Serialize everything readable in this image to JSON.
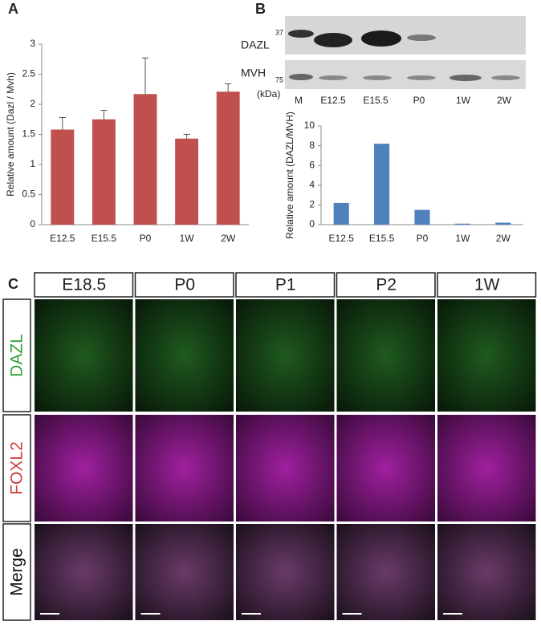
{
  "panel_labels": [
    "A",
    "B",
    "C"
  ],
  "chart_data": [
    {
      "type": "bar",
      "ylabel": "Relative amount (Dazl / Mvh)",
      "categories": [
        "E12.5",
        "E15.5",
        "P0",
        "1W",
        "2W"
      ],
      "values": [
        1.58,
        1.75,
        2.17,
        1.43,
        2.21
      ],
      "errors": [
        0.2,
        0.15,
        0.6,
        0.07,
        0.13
      ],
      "color": "#c0504d",
      "ylim": [
        0,
        3
      ],
      "yticks": [
        0,
        0.5,
        1,
        1.5,
        2,
        2.5,
        3
      ]
    },
    {
      "type": "bar",
      "ylabel": "Relative amount (DAZL/MVH)",
      "categories": [
        "E12.5",
        "E15.5",
        "P0",
        "1W",
        "2W"
      ],
      "values": [
        2.2,
        8.2,
        1.5,
        0.1,
        0.2
      ],
      "color": "#4f81bd",
      "ylim": [
        0,
        10
      ],
      "yticks": [
        0,
        2,
        4,
        6,
        8,
        10
      ]
    }
  ],
  "blot": {
    "rows": [
      "DAZL",
      "MVH"
    ],
    "markers": [
      37,
      75
    ],
    "unit": "(kDa)",
    "lanes": [
      "M",
      "E12.5",
      "E15.5",
      "P0",
      "1W",
      "2W"
    ]
  },
  "micrographs": {
    "columns": [
      "E18.5",
      "P0",
      "P1",
      "P2",
      "1W"
    ],
    "rows": [
      "DAZL",
      "FOXL2",
      "Merge"
    ]
  }
}
